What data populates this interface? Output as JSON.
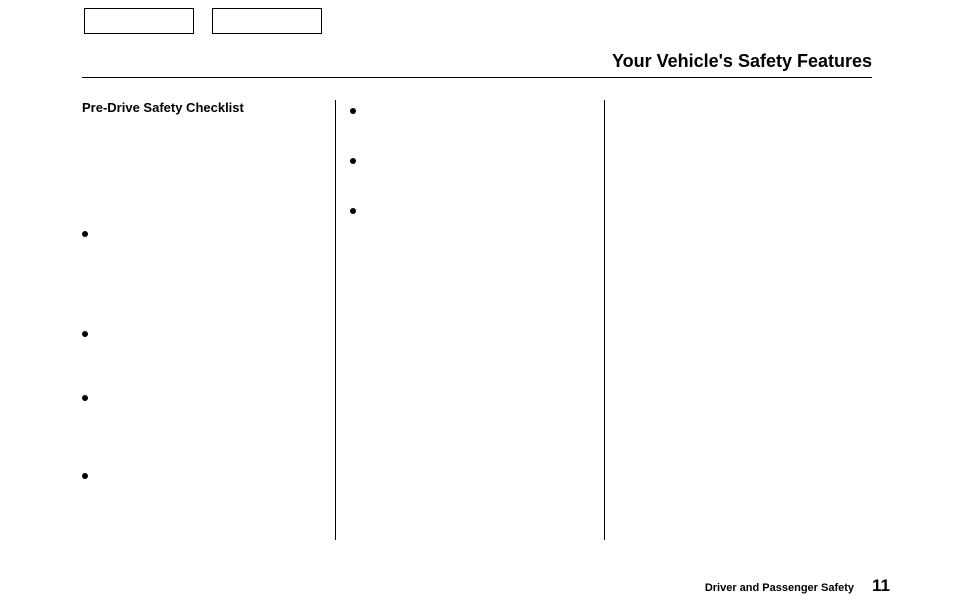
{
  "header": {
    "title": "Your Vehicle's Safety Features"
  },
  "column1": {
    "heading": "Pre-Drive Safety Checklist",
    "items": [
      "",
      "",
      "",
      ""
    ]
  },
  "column2": {
    "items": [
      "",
      "",
      ""
    ]
  },
  "footer": {
    "section": "Driver and Passenger Safety",
    "page": "11"
  }
}
